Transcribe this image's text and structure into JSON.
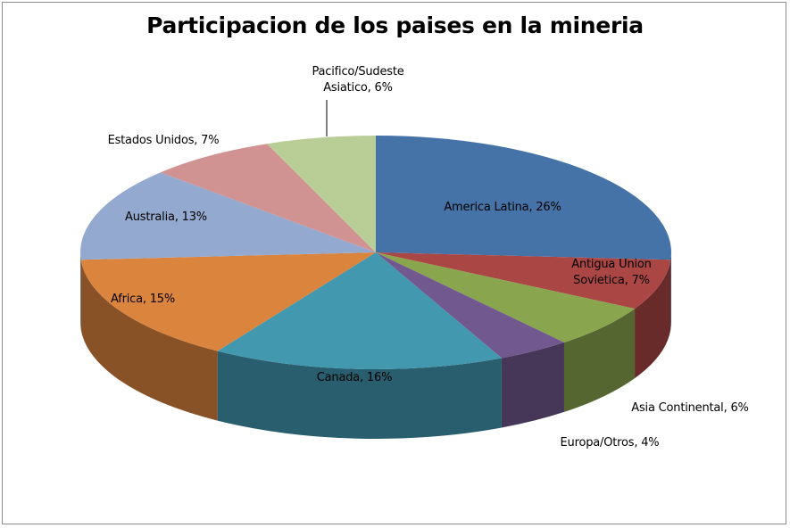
{
  "chart_data": {
    "type": "pie3d",
    "title": "Participacion de los paises en la mineria",
    "categories": [
      "America Latina",
      "Antigua Union Sovietica",
      "Asia Continental",
      "Europa/Otros",
      "Canada",
      "Africa",
      "Australia",
      "Estados Unidos",
      "Pacifico/Sudeste Asiatico"
    ],
    "values": [
      26,
      7,
      6,
      4,
      16,
      15,
      13,
      7,
      6
    ],
    "value_labels": [
      "26%",
      "7%",
      "6%",
      "4%",
      "16%",
      "15%",
      "13%",
      "7%",
      "6%"
    ],
    "label_separator": ", ",
    "colors": [
      "#4572a7",
      "#aa4643",
      "#89a54e",
      "#71588f",
      "#4198af",
      "#db843d",
      "#93a9cf",
      "#d19392",
      "#b9cd96"
    ]
  }
}
